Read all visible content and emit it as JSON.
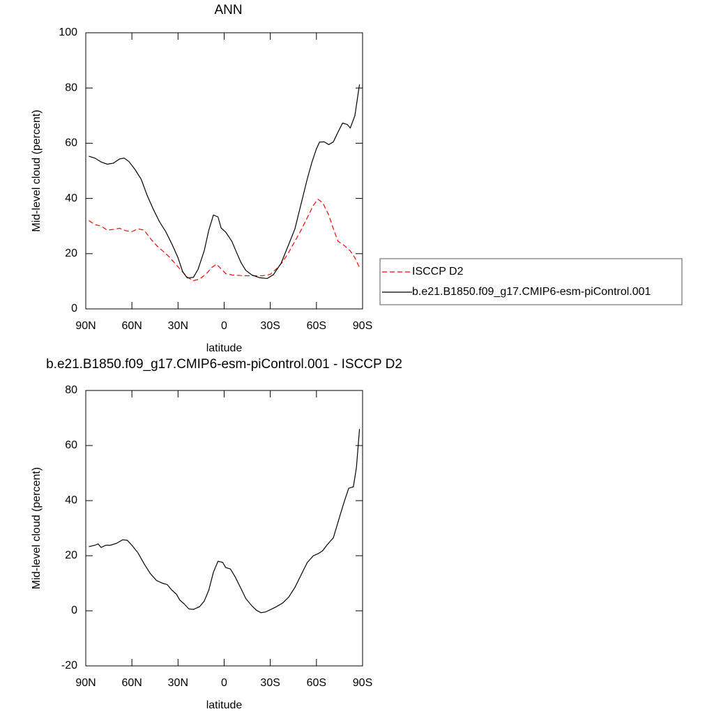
{
  "chart_data": [
    {
      "type": "line",
      "title": "ANN",
      "xlabel": "latitude",
      "ylabel": "Mid-level cloud (percent)",
      "xlim": [
        90,
        -90
      ],
      "ylim": [
        0,
        100
      ],
      "xticks": [
        {
          "value": 90,
          "label": "90N"
        },
        {
          "value": 60,
          "label": "60N"
        },
        {
          "value": 30,
          "label": "30N"
        },
        0,
        {
          "value": -30,
          "label": "30S"
        },
        {
          "value": -60,
          "label": "60S"
        },
        {
          "value": -90,
          "label": "90S"
        }
      ],
      "yticks": [
        0,
        20,
        40,
        60,
        80,
        100
      ],
      "legend": "outside-right",
      "series": [
        {
          "name": "ISCCP D2",
          "color": "#ff0000",
          "line_style": "dashed",
          "x": [
            88,
            84,
            80,
            76,
            72,
            68,
            64,
            60,
            56,
            52,
            48,
            44,
            40,
            36,
            32,
            28,
            24,
            20,
            16,
            12,
            8,
            5,
            2,
            -1,
            -5,
            -10,
            -15,
            -20,
            -25,
            -30,
            -34,
            -38,
            -42,
            -46,
            -50,
            -54,
            -58,
            -61,
            -64,
            -68,
            -71,
            -74,
            -78,
            -82,
            -85,
            -88
          ],
          "values": [
            32,
            30.5,
            30,
            28.5,
            28.8,
            29.2,
            28.3,
            28,
            29,
            28.5,
            25.5,
            23,
            21,
            19,
            16.5,
            14,
            11.5,
            10.2,
            10.8,
            12.5,
            15,
            16.2,
            14.5,
            12.8,
            12.3,
            12.1,
            12,
            12,
            12,
            12.5,
            14.5,
            17,
            20.5,
            24.5,
            28.5,
            33,
            37.5,
            39.7,
            38.5,
            34,
            29,
            24.5,
            23,
            21,
            18.5,
            15
          ]
        },
        {
          "name": "b.e21.B1850.f09_g17.CMIP6-esm-piControl.001",
          "color": "#000000",
          "line_style": "solid",
          "x": [
            88,
            84,
            80,
            76,
            72,
            68,
            65,
            62,
            58,
            54,
            50,
            46,
            42,
            38,
            34,
            30,
            27,
            24,
            20,
            17,
            13,
            10,
            7,
            4,
            2,
            -1,
            -5,
            -8,
            -11,
            -14,
            -18,
            -23,
            -28,
            -32,
            -37,
            -41,
            -46,
            -50,
            -54,
            -57,
            -60,
            -62,
            -65,
            -68,
            -71,
            -74,
            -77,
            -80,
            -82,
            -85,
            -88
          ],
          "values": [
            55.3,
            54.6,
            53.2,
            52.4,
            52.8,
            54.3,
            54.6,
            53.4,
            50.5,
            47,
            41,
            36,
            31.5,
            28,
            23.5,
            18.5,
            13.5,
            11.2,
            11.4,
            14.3,
            21,
            28.5,
            34,
            33.3,
            29.3,
            27.8,
            24.5,
            20.5,
            16.7,
            14,
            12.3,
            11.3,
            11,
            12.4,
            16.5,
            22,
            29,
            38,
            47,
            53,
            58,
            60.4,
            60.5,
            59.5,
            60.5,
            64,
            67.3,
            66.8,
            65.5,
            70,
            81.3
          ]
        }
      ]
    },
    {
      "type": "line",
      "title": "b.e21.B1850.f09_g17.CMIP6-esm-piControl.001 - ISCCP D2",
      "xlabel": "latitude",
      "ylabel": "Mid-level cloud (percent)",
      "xlim": [
        90,
        -90
      ],
      "ylim": [
        -20,
        80
      ],
      "xticks": [
        {
          "value": 90,
          "label": "90N"
        },
        {
          "value": 60,
          "label": "60N"
        },
        {
          "value": 30,
          "label": "30N"
        },
        0,
        {
          "value": -30,
          "label": "30S"
        },
        {
          "value": -60,
          "label": "60S"
        },
        {
          "value": -90,
          "label": "90S"
        }
      ],
      "yticks": [
        -20,
        0,
        20,
        40,
        60,
        80
      ],
      "series": [
        {
          "color": "#000000",
          "line_style": "solid",
          "x": [
            88,
            84,
            82,
            80,
            77,
            74,
            70,
            66,
            63,
            60,
            56,
            52,
            48,
            44,
            40,
            37,
            34,
            31,
            29,
            26,
            23,
            20,
            16,
            13,
            10,
            7,
            4,
            1,
            -1,
            -4,
            -7,
            -11,
            -14,
            -18,
            -21,
            -24,
            -27,
            -30,
            -34,
            -38,
            -42,
            -46,
            -50,
            -54,
            -58,
            -61,
            -64,
            -67,
            -71,
            -75,
            -78,
            -81,
            -84,
            -86,
            -88
          ],
          "values": [
            23.3,
            23.8,
            24.3,
            23,
            23.8,
            23.8,
            24.5,
            25.8,
            25.6,
            23.8,
            21,
            17,
            13.5,
            11,
            10,
            9.5,
            7.5,
            6,
            4,
            2.5,
            0.7,
            0.5,
            1.5,
            3.5,
            7.5,
            14,
            18,
            17.6,
            15.7,
            15.2,
            12.5,
            8,
            4.5,
            1.8,
            0.2,
            -0.7,
            -0.4,
            0.4,
            1.5,
            2.8,
            5,
            8.5,
            13,
            17.5,
            20,
            20.7,
            21.8,
            24,
            26.5,
            34,
            39.5,
            44.5,
            45,
            52,
            66
          ]
        }
      ]
    }
  ]
}
